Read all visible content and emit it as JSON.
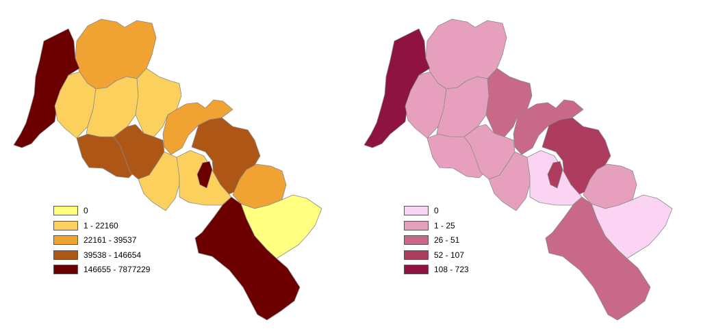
{
  "maps": [
    {
      "legend": [
        {
          "label": "0",
          "color": "#ffff80"
        },
        {
          "label": "1 - 22160",
          "color": "#fcd05d"
        },
        {
          "label": "22161 - 39537",
          "color": "#f0a232"
        },
        {
          "label": "39538 - 146654",
          "color": "#ad5616"
        },
        {
          "label": "146655 - 7877229",
          "color": "#6c0000"
        }
      ],
      "region_classes": {
        "coast": 4,
        "north": 2,
        "west_upper": 1,
        "center_upper": 1,
        "center_upper_right": 1,
        "east_upper": 2,
        "west_middle": 3,
        "center_middle": 3,
        "east_middle": 3,
        "south_middle_left": 1,
        "south_middle_right": 1,
        "enclave": 4,
        "southeast": 2,
        "yellow_east": 0,
        "south": 4
      }
    },
    {
      "legend": [
        {
          "label": "0",
          "color": "#fad4f2"
        },
        {
          "label": "1 - 25",
          "color": "#e6a0be"
        },
        {
          "label": "26 - 51",
          "color": "#c8698a"
        },
        {
          "label": "52 - 107",
          "color": "#ad3c5f"
        },
        {
          "label": "108 - 723",
          "color": "#8f1340"
        }
      ],
      "region_classes": {
        "coast": 4,
        "north": 1,
        "west_upper": 1,
        "center_upper": 1,
        "center_upper_right": 2,
        "east_upper": 2,
        "west_middle": 1,
        "center_middle": 1,
        "east_middle": 3,
        "south_middle_left": 1,
        "south_middle_right": 0,
        "enclave": 3,
        "southeast": 1,
        "yellow_east": 0,
        "south": 2
      }
    }
  ]
}
